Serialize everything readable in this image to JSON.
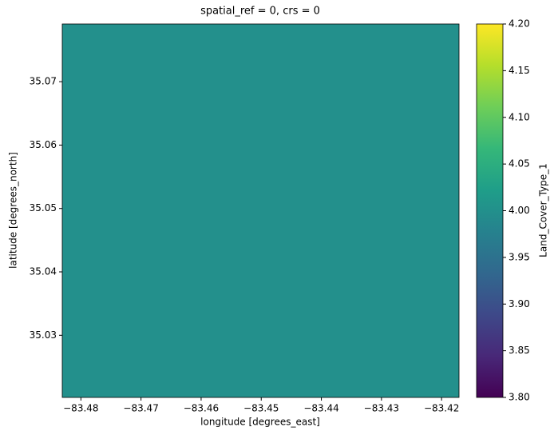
{
  "chart_data": {
    "type": "heatmap",
    "title": "spatial_ref = 0, crs = 0",
    "x_label": "longitude [degrees_east]",
    "y_label": "latitude [degrees_north]",
    "z": [
      [
        4
      ]
    ],
    "xlim": [
      -83.4831,
      -83.4171
    ],
    "ylim": [
      35.0202,
      35.0791
    ],
    "xticks": [
      {
        "value": -83.48,
        "label": "−83.48"
      },
      {
        "value": -83.47,
        "label": "−83.47"
      },
      {
        "value": -83.46,
        "label": "−83.46"
      },
      {
        "value": -83.45,
        "label": "−83.45"
      },
      {
        "value": -83.44,
        "label": "−83.44"
      },
      {
        "value": -83.43,
        "label": "−83.43"
      },
      {
        "value": -83.42,
        "label": "−83.42"
      }
    ],
    "yticks": [
      35.03,
      35.04,
      35.05,
      35.06,
      35.07
    ],
    "colormap": "viridis",
    "colorbar_label": "Land_Cover_Type_1",
    "clim": [
      3.8,
      4.2
    ],
    "cticks": [
      {
        "value": 3.8,
        "label": "3.80"
      },
      {
        "value": 3.85,
        "label": "3.85"
      },
      {
        "value": 3.9,
        "label": "3.90"
      },
      {
        "value": 3.95,
        "label": "3.95"
      },
      {
        "value": 4.0,
        "label": "4.00"
      },
      {
        "value": 4.05,
        "label": "4.05"
      },
      {
        "value": 4.1,
        "label": "4.10"
      },
      {
        "value": 4.15,
        "label": "4.15"
      },
      {
        "value": 4.2,
        "label": "4.20"
      }
    ]
  }
}
